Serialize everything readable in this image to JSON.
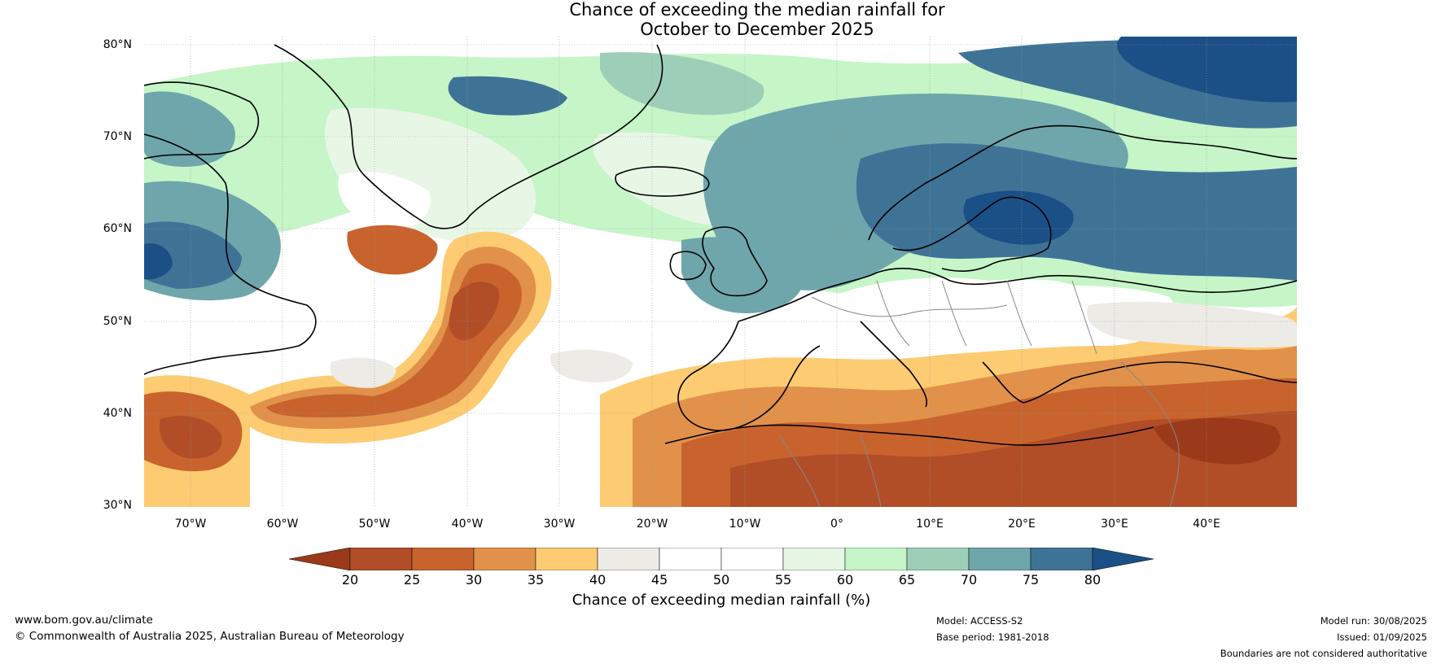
{
  "title": {
    "line1": "Chance of exceeding the median rainfall for",
    "line2": "October to December 2025"
  },
  "map": {
    "lat_labels": [
      "80°N",
      "70°N",
      "60°N",
      "50°N",
      "40°N",
      "30°N"
    ],
    "lon_labels": [
      "70°W",
      "60°W",
      "50°W",
      "40°W",
      "30°W",
      "20°W",
      "10°W",
      "0°",
      "10°E",
      "20°E",
      "30°E",
      "40°E"
    ],
    "colors": {
      "lt20": "#9a3a1a",
      "c20_25": "#b14e28",
      "c25_30": "#c8632e",
      "c30_35": "#e1914a",
      "c35_40": "#fdcb71",
      "c40_45": "#edebe6",
      "c45_50": "#ffffff",
      "c50_55": "#ffffff",
      "c55_60": "#e8f6e6",
      "c60_65": "#c6f5c8",
      "c65_70": "#9dcfb8",
      "c70_75": "#6fa6ab",
      "c75_80": "#3f7396",
      "gt80": "#1a5086"
    }
  },
  "legend": {
    "ticks": [
      "20",
      "25",
      "30",
      "35",
      "40",
      "45",
      "50",
      "55",
      "60",
      "65",
      "70",
      "75",
      "80"
    ],
    "label": "Chance of exceeding median rainfall (%)"
  },
  "footer": {
    "url": "www.bom.gov.au/climate",
    "copyright": "© Commonwealth of Australia 2025, Australian Bureau of Meteorology",
    "model": "Model: ACCESS-S2",
    "base_period": "Base period: 1981-2018",
    "model_run": "Model run: 30/08/2025",
    "issued": "Issued: 01/09/2025",
    "disclaimer": "Boundaries are not considered authoritative"
  }
}
